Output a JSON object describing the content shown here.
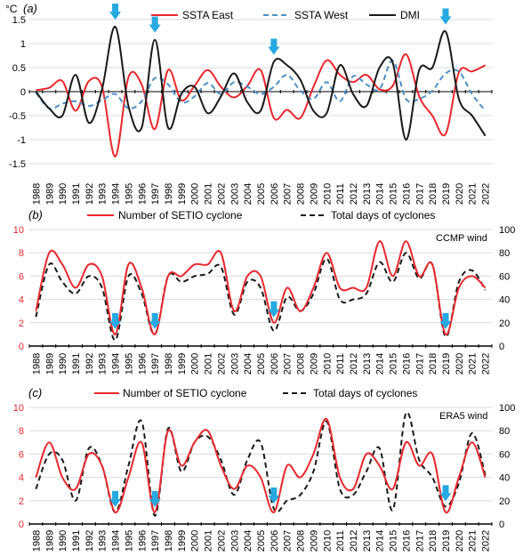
{
  "colors": {
    "east": "#e8292d",
    "west": "#4a90c8",
    "dmi": "#1a1a1a",
    "red_axis": "#e8292d",
    "arrow": "#26a9e0",
    "grid": "#d9d9d9"
  },
  "chart_data": [
    {
      "type": "line",
      "panel_label": "(a)",
      "ylabel": "°C",
      "ylim": [
        -1.5,
        1.5
      ],
      "yticks": [
        "1.5",
        "1",
        "0.5",
        "0",
        "-0.5",
        "-1",
        "-1.5"
      ],
      "ytick_values": [
        1.5,
        1,
        0.5,
        0,
        -0.5,
        -1,
        -1.5
      ],
      "x": [
        "1988",
        "1989",
        "1990",
        "1991",
        "1992",
        "1993",
        "1994",
        "1995",
        "1996",
        "1997",
        "1998",
        "1999",
        "2000",
        "2001",
        "2002",
        "2003",
        "2004",
        "2005",
        "2006",
        "2007",
        "2008",
        "2009",
        "2010",
        "2011",
        "2012",
        "2013",
        "2014",
        "2015",
        "2016",
        "2017",
        "2018",
        "2019",
        "2020",
        "2021",
        "2022"
      ],
      "series": [
        {
          "name": "SSTA East",
          "values": [
            0.03,
            0.08,
            0.22,
            -0.4,
            0.22,
            0.1,
            -1.35,
            0.3,
            0.15,
            -0.78,
            0.45,
            -0.18,
            0.12,
            0.45,
            0.1,
            -0.12,
            0.12,
            0.45,
            -0.55,
            -0.38,
            -0.55,
            0.1,
            0.65,
            0.35,
            0.2,
            0.35,
            0.05,
            0.12,
            0.78,
            -0.1,
            -0.5,
            -0.88,
            0.4,
            0.42,
            0.55
          ]
        },
        {
          "name": "SSTA West",
          "values": [
            -0.02,
            -0.35,
            -0.25,
            -0.2,
            -0.3,
            -0.18,
            -0.05,
            -0.35,
            -0.2,
            0.28,
            0.15,
            -0.22,
            -0.1,
            0.18,
            -0.05,
            0.2,
            0.1,
            -0.05,
            0.1,
            0.35,
            0.02,
            -0.15,
            0.2,
            -0.2,
            0.32,
            0.15,
            0.05,
            0.65,
            -0.15,
            -0.15,
            0.02,
            0.38,
            0.42,
            -0.05,
            -0.4
          ]
        },
        {
          "name": "DMI",
          "values": [
            0.0,
            -0.35,
            -0.5,
            0.35,
            -0.65,
            0.05,
            1.35,
            -0.3,
            -0.75,
            1.08,
            -0.75,
            -0.05,
            0.1,
            -0.45,
            -0.1,
            0.38,
            -0.22,
            -0.4,
            0.62,
            0.55,
            0.25,
            -0.4,
            -0.45,
            0.55,
            -0.05,
            -0.3,
            0.5,
            0.6,
            -1.0,
            0.45,
            0.5,
            1.25,
            -0.15,
            -0.5,
            -0.92
          ]
        }
      ],
      "arrows_at": [
        "1994",
        "1997",
        "2006",
        "2019"
      ]
    },
    {
      "type": "line",
      "panel_label": "(b)",
      "annotation": "CCMP wind",
      "ylim_left": [
        0,
        10
      ],
      "ylim_right": [
        0,
        100
      ],
      "yticks_left": [
        "10",
        "8",
        "6",
        "4",
        "2",
        "0"
      ],
      "ytick_values_left": [
        10,
        8,
        6,
        4,
        2,
        0
      ],
      "yticks_right": [
        "100",
        "80",
        "60",
        "40",
        "20",
        "0"
      ],
      "x": [
        "1988",
        "1989",
        "1990",
        "1991",
        "1992",
        "1993",
        "1994",
        "1995",
        "1996",
        "1997",
        "1998",
        "1999",
        "2000",
        "2001",
        "2002",
        "2003",
        "2004",
        "2005",
        "2006",
        "2007",
        "2008",
        "2009",
        "2010",
        "2011",
        "2012",
        "2013",
        "2014",
        "2015",
        "2016",
        "2017",
        "2018",
        "2019",
        "2020",
        "2021",
        "2022"
      ],
      "series": [
        {
          "name": "Number of SETIO cyclone",
          "axis": "left",
          "values": [
            3,
            8,
            7,
            5,
            7,
            6,
            1,
            7,
            5,
            1,
            6,
            6,
            7,
            7,
            8,
            3,
            6,
            6,
            2,
            5,
            3,
            5,
            8,
            5,
            5,
            5,
            9,
            6,
            9,
            6,
            7,
            1,
            5,
            6,
            5
          ]
        },
        {
          "name": "Total days of cyclones",
          "axis": "right",
          "values": [
            25,
            70,
            55,
            45,
            60,
            50,
            5,
            60,
            45,
            10,
            60,
            55,
            60,
            62,
            68,
            27,
            55,
            50,
            13,
            42,
            30,
            45,
            75,
            40,
            40,
            45,
            72,
            55,
            80,
            58,
            70,
            8,
            55,
            65,
            48
          ]
        }
      ],
      "arrows_at": [
        "1994",
        "1997",
        "2006",
        "2019"
      ]
    },
    {
      "type": "line",
      "panel_label": "(c)",
      "annotation": "ERA5 wind",
      "ylim_left": [
        0,
        10
      ],
      "ylim_right": [
        0,
        100
      ],
      "yticks_left": [
        "10",
        "8",
        "6",
        "4",
        "2",
        "0"
      ],
      "ytick_values_left": [
        10,
        8,
        6,
        4,
        2,
        0
      ],
      "yticks_right": [
        "100",
        "80",
        "60",
        "40",
        "20",
        "0"
      ],
      "x": [
        "1988",
        "1989",
        "1990",
        "1991",
        "1992",
        "1993",
        "1994",
        "1995",
        "1996",
        "1997",
        "1998",
        "1999",
        "2000",
        "2001",
        "2002",
        "2003",
        "2004",
        "2005",
        "2006",
        "2007",
        "2008",
        "2009",
        "2010",
        "2011",
        "2012",
        "2013",
        "2014",
        "2015",
        "2016",
        "2017",
        "2018",
        "2019",
        "2020",
        "2021",
        "2022"
      ],
      "series": [
        {
          "name": "Number of SETIO cyclone",
          "axis": "left",
          "values": [
            4,
            7,
            4,
            3,
            6,
            5,
            1,
            4,
            7,
            1,
            8,
            5,
            7,
            8,
            5,
            3,
            5,
            4,
            1,
            5,
            4,
            6,
            9,
            4,
            3,
            6,
            5,
            3,
            7,
            5,
            6,
            1,
            4,
            7,
            4
          ]
        },
        {
          "name": "Total days of cyclones",
          "axis": "right",
          "values": [
            30,
            60,
            55,
            20,
            65,
            50,
            10,
            50,
            88,
            7,
            82,
            45,
            70,
            75,
            55,
            25,
            55,
            70,
            13,
            20,
            25,
            45,
            88,
            30,
            25,
            45,
            65,
            12,
            95,
            55,
            40,
            15,
            35,
            78,
            42
          ]
        }
      ],
      "arrows_at": [
        "1994",
        "1997",
        "2006",
        "2019"
      ]
    }
  ]
}
